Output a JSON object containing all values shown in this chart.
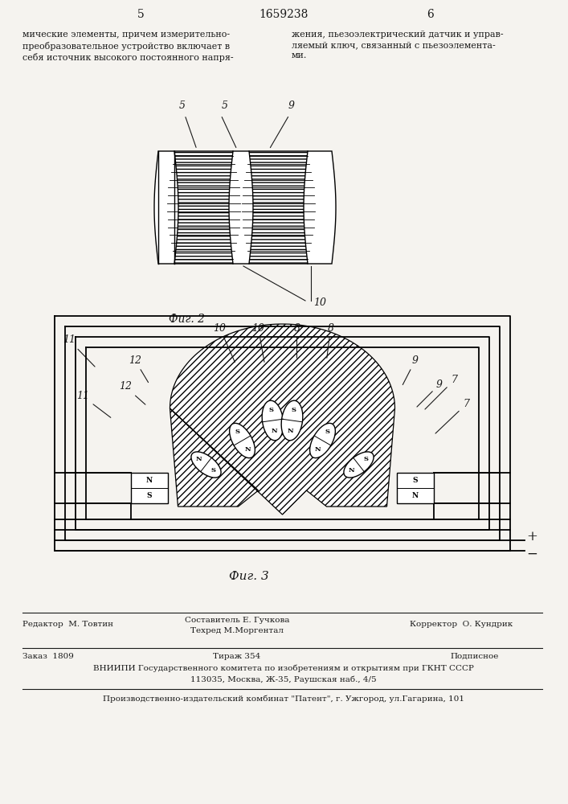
{
  "bg_color": "#f5f3ef",
  "text_color": "#1a1a1a",
  "page_num_left": "5",
  "page_num_center": "1659238",
  "page_num_right": "6",
  "left_text": "мические элементы, причем измерительно-\nпреобразовательное устройство включает в\nсебя источник высокого постоянного напря-",
  "right_text": "жения, пьезоэлектрический датчик и управ-\nляемый ключ, связанный с пьезоэлемента-\nми.",
  "fig2_caption": "Фиг. 2",
  "fig3_caption": "Фиг. 3",
  "footer_line1_left": "Редактор  М. Товтин",
  "footer_line1_mid_1": "Составитель Е. Гучкова",
  "footer_line1_mid_2": "Техред М.Моргентал",
  "footer_line1_right": "Корректор  О. Кундрик",
  "footer_line2_left": "Заказ  1809",
  "footer_line2_mid": "Тираж 354",
  "footer_line2_right": "Подписное",
  "footer_vnipi": "ВНИИПИ Государственного комитета по изобретениям и открытиям при ГКНТ СССР",
  "footer_address": "113035, Москва, Ж-35, Раушская наб., 4/5",
  "footer_patent": "Производственно-издательский комбинат \"Патент\", г. Ужгород, ул.Гагарина, 101"
}
